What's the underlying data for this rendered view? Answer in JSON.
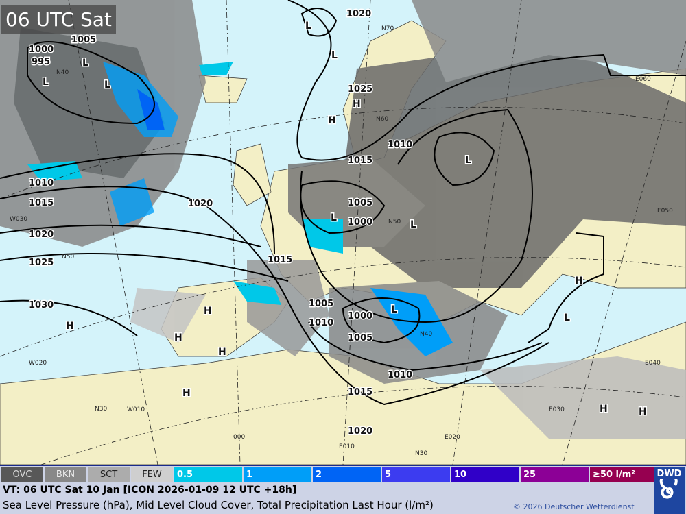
{
  "title": "06 UTC Sat",
  "colors": {
    "sea": "#d4f3fa",
    "land": "#f3efc6",
    "cloud_dark": "#5a5a5a",
    "cloud_mid": "#8a8a8a",
    "cloud_light": "#c4c4c4",
    "precip_05": "#00c8e8",
    "precip_1": "#009ef8",
    "precip_2": "#0064f5",
    "precip_5": "#3c3cf0",
    "precip_10": "#3000c8",
    "precip_25": "#8c0096",
    "precip_50": "#960050",
    "brand": "#1e46a0"
  },
  "isobar_labels": [
    "1020",
    "1005",
    "1000",
    "995",
    "1025",
    "1010",
    "1015",
    "1010",
    "1015",
    "1020",
    "1005",
    "1000",
    "1020",
    "1025",
    "1015",
    "1030",
    "1005",
    "1010",
    "1000",
    "1005",
    "1010",
    "1015",
    "1020"
  ],
  "pressure_centers": [
    "L",
    "L",
    "L",
    "L",
    "L",
    "H",
    "H",
    "L",
    "L",
    "L",
    "L",
    "H",
    "L",
    "H",
    "H",
    "H",
    "H",
    "H",
    "H",
    "H"
  ],
  "grid_labels": [
    "N40",
    "W030",
    "N50",
    "W020",
    "W010",
    "N30",
    "000",
    "E010",
    "E020",
    "N30",
    "E030",
    "E040",
    "E050",
    "E060",
    "N50",
    "N60",
    "N40",
    "N70"
  ],
  "legend": {
    "cloud": [
      "OVC",
      "BKN",
      "SCT",
      "FEW"
    ],
    "cloud_colors": [
      "#585858",
      "#888888",
      "#acacac",
      "#cfcfcf"
    ],
    "precip": [
      "0.5",
      "1",
      "2",
      "5",
      "10",
      "25",
      "≥50 l/m²"
    ],
    "precip_colors": [
      "#00c8e8",
      "#009ef8",
      "#0064f5",
      "#3c3cf0",
      "#3000c8",
      "#8c0096",
      "#960050"
    ]
  },
  "footer": {
    "valid_time": "VT: 06 UTC Sat  10 Jan [ICON 2026-01-09 12 UTC +18h]",
    "description": "Sea Level Pressure (hPa), Mid Level Cloud Cover, Total Precipitation Last Hour (l/m²)",
    "copyright": "© 2026 Deutscher Wetterdienst",
    "logo": "DWD"
  }
}
